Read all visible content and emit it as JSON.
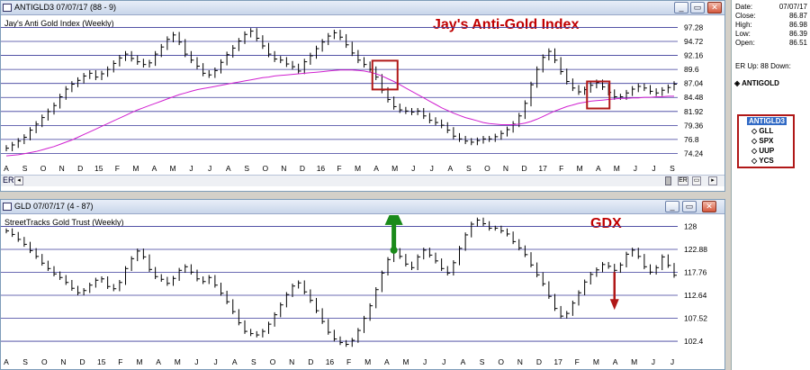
{
  "top_window": {
    "title": "ANTIGLD3 07/07/17  (88 - 9)",
    "subtitle": "Jay's Anti Gold Index (Weekly)",
    "overlay_title": "Jay's Anti-Gold Index",
    "scroll_label": "ER",
    "buttons": [
      "_",
      "▭",
      "✕"
    ]
  },
  "bottom_window": {
    "title": "GLD 07/07/17  (4 - 87)",
    "subtitle": "StreetTracks Gold Trust (Weekly)",
    "overlay_title": "GDX",
    "scroll_label": "ER",
    "buttons": [
      "_",
      "▭",
      "✕"
    ]
  },
  "sidebar": {
    "date_label": "Date:",
    "date_value": "07/07/17",
    "close_label": "Close:",
    "close_value": "86.87",
    "high_label": "High:",
    "high_value": "86.98",
    "low_label": "Low:",
    "low_value": "86.39",
    "open_label": "Open:",
    "open_value": "86.51",
    "er_text": "ER Up:   88  Down:",
    "tree_root": "ANTIGOLD",
    "tree_items": [
      "ANTIGLD3",
      "GLL",
      "SPX",
      "UUP",
      "YCS"
    ]
  },
  "colors": {
    "grid": "#3a3a9a",
    "price": "#000000",
    "ma_short": "#e02020",
    "ma_long": "#d020d0",
    "annotation": "#b01818",
    "arrow_up": "#1a8a1a",
    "arrow_down": "#b01818"
  },
  "chart_data": [
    {
      "type": "line",
      "title": "Jay's Anti Gold Index (Weekly)",
      "x_labels": [
        "A",
        "S",
        "O",
        "N",
        "D",
        "15",
        "F",
        "M",
        "A",
        "M",
        "J",
        "J",
        "A",
        "S",
        "O",
        "N",
        "D",
        "16",
        "F",
        "M",
        "A",
        "M",
        "J",
        "J",
        "A",
        "S",
        "O",
        "N",
        "D",
        "17",
        "F",
        "M",
        "A",
        "M",
        "J",
        "J",
        "S"
      ],
      "y_ticks": [
        97.28,
        94.72,
        92.16,
        89.6,
        87.04,
        84.48,
        81.92,
        79.36,
        76.8,
        74.24
      ],
      "ylim": [
        73.0,
        99.0
      ],
      "series": [
        {
          "values": [
            75.2,
            75.8,
            76.5,
            77.2,
            78.5,
            79.6,
            80.8,
            81.9,
            83.0,
            84.6,
            86.0,
            86.9,
            87.6,
            88.4,
            88.9,
            88.2,
            88.8,
            89.6,
            90.7,
            91.7,
            92.4,
            91.6,
            91.0,
            90.5,
            90.8,
            92.4,
            93.7,
            95.1,
            95.9,
            94.6,
            92.4,
            91.3,
            90.2,
            88.9,
            88.6,
            89.4,
            90.9,
            92.3,
            93.5,
            94.8,
            96.0,
            96.6,
            95.3,
            93.9,
            92.4,
            91.5,
            91.3,
            90.6,
            90.1,
            89.3,
            91.0,
            92.1,
            93.4,
            94.6,
            95.7,
            96.3,
            95.5,
            94.1,
            92.6,
            91.3,
            90.5,
            89.6,
            88.2,
            85.8,
            84.1,
            82.8,
            82.2,
            82.0,
            81.8,
            82.0,
            81.1,
            80.3,
            79.9,
            79.4,
            78.5,
            77.4,
            76.9,
            76.5,
            76.3,
            76.6,
            76.9,
            76.9,
            77.3,
            77.9,
            78.6,
            79.6,
            81.1,
            83.4,
            86.8,
            89.6,
            91.8,
            92.9,
            91.3,
            89.2,
            87.4,
            86.2,
            85.5,
            85.9,
            86.7,
            87.2,
            86.4,
            85.4,
            84.6,
            84.6,
            85.3,
            86.0,
            86.5,
            86.2,
            85.6,
            85.3,
            85.8,
            86.3,
            86.9
          ]
        },
        {
          "values": [
            74.3,
            74.5,
            74.9,
            75.3,
            75.9,
            76.6,
            77.4,
            78.2,
            79.1,
            80.0,
            81.0,
            81.9,
            82.9,
            83.8,
            84.6,
            85.3,
            85.9,
            86.4,
            86.9,
            87.4,
            87.9,
            88.3,
            88.6,
            88.9,
            89.0,
            89.3,
            89.6,
            89.9,
            90.3,
            90.4,
            90.5,
            90.5,
            90.4,
            90.2,
            90.0,
            89.9,
            89.9,
            90.1,
            90.3,
            90.6,
            90.9,
            91.2,
            91.3,
            91.3,
            91.2,
            91.0,
            90.9,
            90.7,
            90.5,
            90.4,
            90.4,
            90.5,
            90.7,
            90.9,
            91.2,
            91.4,
            91.5,
            91.5,
            91.3,
            91.0,
            90.7,
            90.3,
            89.8,
            89.1,
            88.3,
            87.5,
            86.7,
            85.9,
            85.1,
            84.3,
            83.6,
            82.9,
            82.2,
            81.6,
            81.0,
            80.3,
            79.7,
            79.2,
            78.8,
            78.5,
            78.3,
            78.1,
            78.0,
            78.0,
            78.0,
            78.1,
            78.4,
            78.8,
            79.4,
            80.3,
            81.3,
            82.5,
            83.3,
            84.0,
            84.4,
            84.8,
            85.1,
            85.4,
            85.6,
            85.7,
            85.7,
            85.6,
            85.6,
            85.5,
            85.5,
            85.4,
            85.4,
            85.4,
            85.4,
            85.4,
            85.4,
            85.5,
            85.5
          ]
        },
        {
          "values": [
            73.8,
            73.9,
            74.0,
            74.2,
            74.4,
            74.6,
            74.9,
            75.2,
            75.5,
            75.9,
            76.3,
            76.7,
            77.2,
            77.7,
            78.2,
            78.7,
            79.2,
            79.7,
            80.2,
            80.7,
            81.2,
            81.7,
            82.2,
            82.6,
            83.0,
            83.4,
            83.8,
            84.2,
            84.6,
            85.0,
            85.3,
            85.6,
            85.9,
            86.1,
            86.3,
            86.5,
            86.7,
            86.9,
            87.1,
            87.3,
            87.5,
            87.7,
            87.9,
            88.1,
            88.2,
            88.4,
            88.5,
            88.6,
            88.7,
            88.8,
            88.9,
            89.0,
            89.1,
            89.2,
            89.3,
            89.4,
            89.5,
            89.5,
            89.5,
            89.4,
            89.3,
            89.1,
            88.8,
            88.4,
            87.9,
            87.4,
            86.8,
            86.2,
            85.6,
            85.0,
            84.4,
            83.8,
            83.2,
            82.6,
            82.1,
            81.6,
            81.2,
            80.8,
            80.5,
            80.2,
            79.9,
            79.7,
            79.6,
            79.5,
            79.5,
            79.5,
            79.6,
            79.8,
            80.1,
            80.5,
            81.0,
            81.5,
            82.0,
            82.4,
            82.8,
            83.1,
            83.4,
            83.6,
            83.8,
            83.9,
            84.0,
            84.1,
            84.2,
            84.3,
            84.3,
            84.4,
            84.4,
            84.5,
            84.5,
            84.6,
            84.6,
            84.7,
            84.7
          ]
        }
      ]
    },
    {
      "type": "line",
      "title": "StreetTracks Gold Trust (Weekly)",
      "x_labels": [
        "A",
        "S",
        "O",
        "N",
        "D",
        "15",
        "F",
        "M",
        "A",
        "M",
        "J",
        "J",
        "A",
        "S",
        "O",
        "N",
        "D",
        "16",
        "F",
        "M",
        "A",
        "M",
        "J",
        "J",
        "A",
        "S",
        "O",
        "N",
        "D",
        "17",
        "F",
        "M",
        "A",
        "M",
        "J",
        "J"
      ],
      "y_ticks": [
        128,
        122.88,
        117.76,
        112.64,
        107.52,
        102.4
      ],
      "ylim": [
        100.0,
        130.5
      ],
      "series": [
        {
          "values": [
            127.0,
            126.2,
            125.1,
            124.0,
            122.6,
            121.3,
            119.8,
            118.6,
            117.4,
            116.6,
            115.5,
            114.2,
            113.2,
            113.7,
            114.9,
            116.0,
            116.3,
            114.6,
            114.1,
            115.5,
            118.6,
            120.8,
            122.5,
            121.2,
            118.4,
            116.8,
            116.2,
            115.3,
            116.4,
            118.2,
            119.0,
            117.8,
            116.3,
            115.7,
            116.6,
            114.9,
            113.1,
            111.2,
            109.0,
            106.5,
            104.6,
            104.1,
            103.8,
            104.6,
            106.2,
            108.3,
            110.5,
            112.8,
            114.7,
            115.4,
            113.4,
            111.5,
            109.2,
            106.8,
            104.4,
            102.9,
            102.1,
            101.7,
            102.6,
            104.8,
            107.5,
            110.3,
            113.9,
            117.6,
            120.6,
            122.6,
            121.3,
            119.6,
            118.8,
            121.2,
            122.7,
            121.6,
            120.3,
            118.6,
            117.6,
            119.9,
            123.1,
            126.1,
            128.5,
            129.4,
            128.6,
            127.6,
            127.6,
            127.0,
            126.3,
            124.6,
            123.2,
            121.7,
            119.4,
            117.2,
            115.2,
            112.4,
            109.7,
            108.0,
            108.6,
            110.9,
            113.2,
            115.6,
            117.3,
            118.3,
            119.5,
            119.1,
            118.2,
            119.4,
            121.8,
            122.7,
            121.3,
            119.0,
            117.8,
            118.8,
            121.2,
            119.3,
            117.1
          ]
        }
      ]
    }
  ]
}
